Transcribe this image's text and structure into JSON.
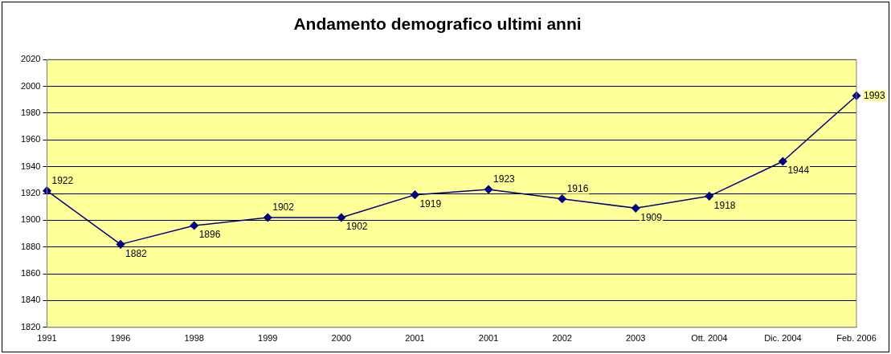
{
  "chart_data": {
    "type": "line",
    "title": "Andamento demografico ultimi anni",
    "categories": [
      "1991",
      "1996",
      "1998",
      "1999",
      "2000",
      "2001",
      "2001",
      "2002",
      "2003",
      "Ott. 2004",
      "Dic. 2004",
      "Feb. 2006"
    ],
    "series": [
      {
        "color": "#000080",
        "values": [
          1922,
          1882,
          1896,
          1902,
          1902,
          1919,
          1923,
          1916,
          1909,
          1918,
          1944,
          1993
        ]
      }
    ],
    "ylim": [
      1820,
      2020
    ],
    "yticks": [
      1820,
      1840,
      1860,
      1880,
      1900,
      1920,
      1940,
      1960,
      1980,
      2000,
      2020
    ],
    "grid": "y",
    "legend": false,
    "marker": "diamond",
    "line_style": "solid",
    "data_labels": true
  }
}
